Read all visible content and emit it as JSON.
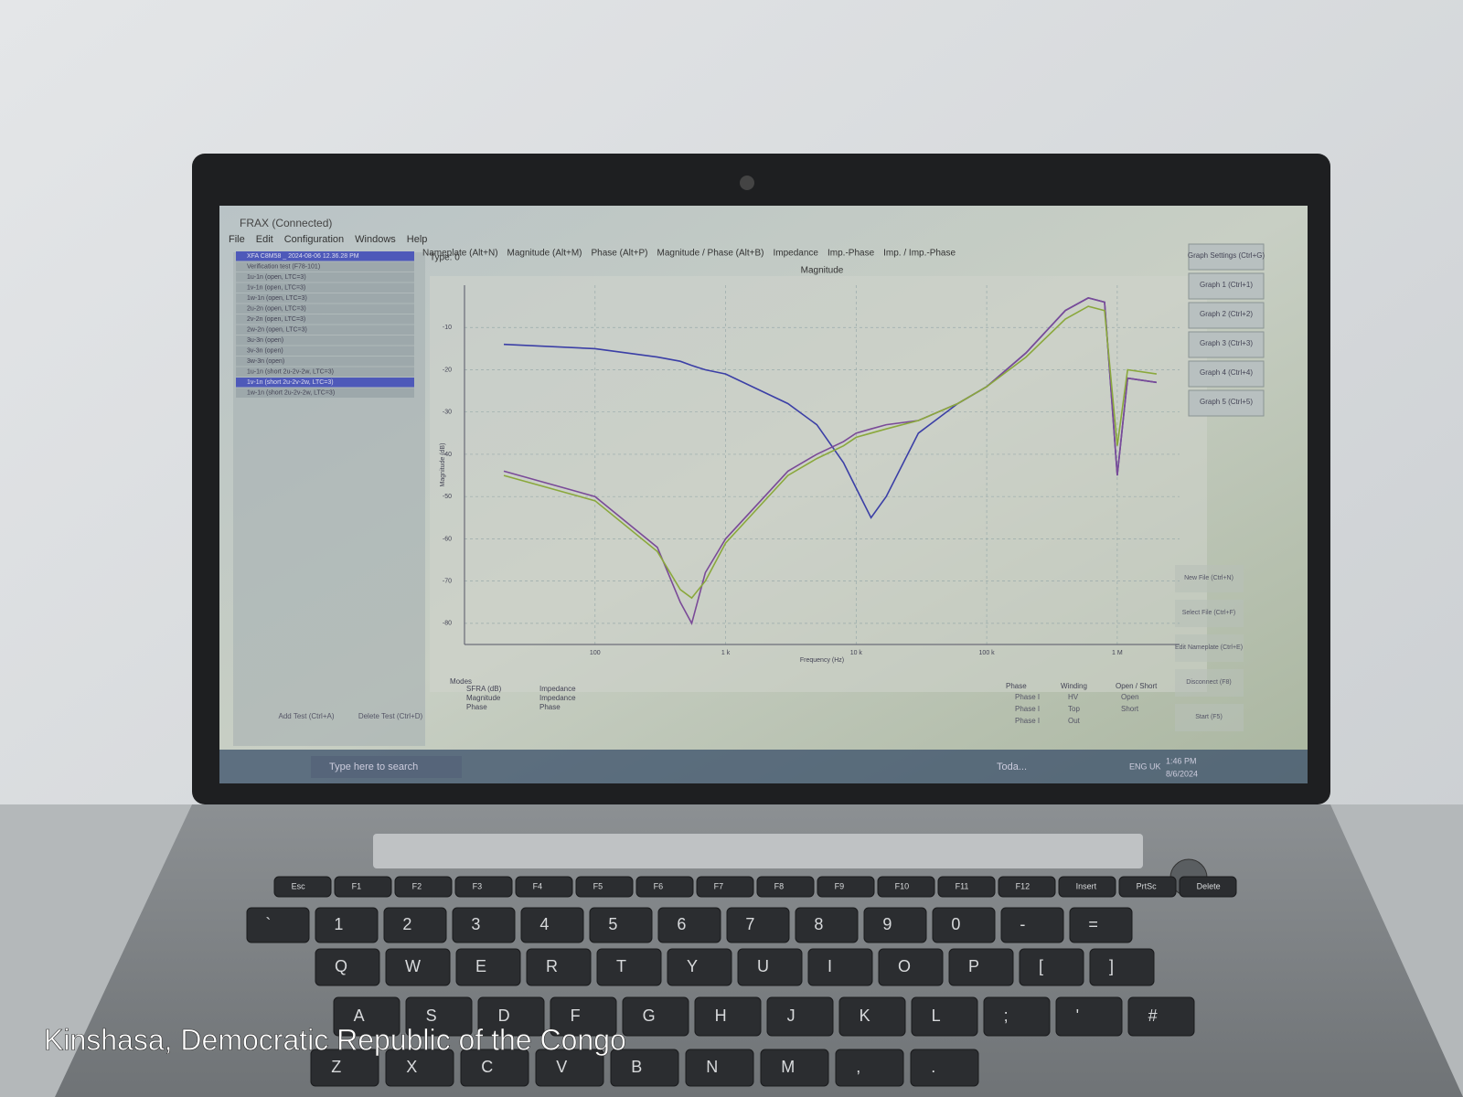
{
  "window": {
    "title": "FRAX (Connected)",
    "menu": [
      "File",
      "Edit",
      "Configuration",
      "Windows",
      "Help"
    ]
  },
  "files": [
    "XFA C8M58 _ 2024-08-06 12.36.28 PM",
    "Verification test (F78-101)",
    "1u-1n (open, LTC=3)",
    "1v-1n (open, LTC=3)",
    "1w-1n (open, LTC=3)",
    "2u-2n (open, LTC=3)",
    "2v-2n (open, LTC=3)",
    "2w-2n (open, LTC=3)",
    "3u-3n (open)",
    "3v-3n (open)",
    "3w-3n (open)",
    "1u-1n (short 2u-2v-2w, LTC=3)",
    "1v-1n (short 2u-2v-2w, LTC=3)",
    "1w-1n (short 2u-2v-2w, LTC=3)"
  ],
  "tabs": [
    "Nameplate (Alt+N)",
    "Magnitude (Alt+M)",
    "Phase (Alt+P)",
    "Magnitude / Phase (Alt+B)",
    "Impedance",
    "Imp.-Phase",
    "Imp. / Imp.-Phase"
  ],
  "graph_buttons": [
    "Graph Settings (Ctrl+G)",
    "Graph 1 (Ctrl+1)",
    "Graph 2 (Ctrl+2)",
    "Graph 3 (Ctrl+3)",
    "Graph 4 (Ctrl+4)",
    "Graph 5 (Ctrl+5)"
  ],
  "side_buttons": [
    "New File (Ctrl+N)",
    "Select File (Ctrl+F)",
    "Edit Nameplate (Ctrl+E)",
    "Disconnect (F8)",
    "Start (F5)"
  ],
  "bottom_buttons": [
    "Add Test (Ctrl+A)",
    "Delete Test (Ctrl+D)"
  ],
  "type_label": "Type: 0",
  "modes": {
    "title": "Modes",
    "items": [
      "SFRA (dB)",
      "Magnitude",
      "Phase",
      "Impedance",
      "Impedance",
      "Phase"
    ]
  },
  "options": {
    "phase": "Phase",
    "winding": "Winding",
    "open_short": "Open / Short",
    "items": [
      "Phase I",
      "Phase I",
      "Phase I",
      "HV",
      "Top",
      "Out",
      "Open",
      "Short"
    ]
  },
  "taskbar": {
    "search": "Type here to search",
    "weather": "Toda...",
    "lang": "ENG UK",
    "time": "1:46 PM",
    "date": "8/6/2024"
  },
  "chart_data": {
    "type": "line",
    "title": "Magnitude",
    "xlabel": "Frequency (Hz)",
    "ylabel": "Magnitude (dB)",
    "xlog": true,
    "grid": true,
    "x": [
      20,
      100,
      300,
      450,
      550,
      700,
      1000,
      3000,
      5000,
      8000,
      10000,
      13000,
      17000,
      30000,
      60000,
      100000,
      200000,
      400000,
      600000,
      800000,
      1000000,
      1200000,
      2000000
    ],
    "series": [
      {
        "color": "#3b3fa6",
        "values": [
          -14,
          -15,
          -17,
          -18,
          -19,
          -20,
          -21,
          -28,
          -33,
          -42,
          -48,
          -55,
          -50,
          -35,
          -28,
          -24,
          -16,
          -6,
          -3,
          -4,
          -45,
          -22,
          -23
        ]
      },
      {
        "color": "#7a4a98",
        "values": [
          -44,
          -50,
          -62,
          -75,
          -80,
          -68,
          -60,
          -44,
          -40,
          -37,
          -35,
          -34,
          -33,
          -32,
          -28,
          -24,
          -16,
          -6,
          -3,
          -4,
          -45,
          -22,
          -23
        ]
      },
      {
        "color": "#8aa83c",
        "values": [
          -45,
          -51,
          -63,
          -72,
          -74,
          -70,
          -61,
          -45,
          -41,
          -38,
          -36,
          -35,
          -34,
          -32,
          -28,
          -24,
          -17,
          -8,
          -5,
          -6,
          -38,
          -20,
          -21
        ]
      }
    ],
    "xlim": [
      10,
      3000000
    ],
    "ylim": [
      -85,
      0
    ],
    "xticks": [
      100,
      {
        "value": 1000,
        "label": "1 k"
      },
      {
        "value": 10000,
        "label": "10 k"
      },
      {
        "value": 100000,
        "label": "100 k"
      },
      {
        "value": 1000000,
        "label": "1 M"
      }
    ],
    "yticks": [
      -10,
      -20,
      -30,
      -40,
      -50,
      -60,
      -70,
      -80
    ]
  },
  "keyboard": [
    [
      "Esc",
      "F1",
      "F2",
      "F3",
      "F4",
      "F5",
      "F6",
      "F7",
      "F8",
      "F9",
      "F10",
      "F11",
      "F12",
      "Insert",
      "PrtSc",
      "Delete"
    ],
    [
      "`",
      "1",
      "2",
      "3",
      "4",
      "5",
      "6",
      "7",
      "8",
      "9",
      "0",
      "-",
      "="
    ],
    [
      "Q",
      "W",
      "E",
      "R",
      "T",
      "Y",
      "U",
      "I",
      "O",
      "P",
      "[",
      "]"
    ],
    [
      "A",
      "S",
      "D",
      "F",
      "G",
      "H",
      "J",
      "K",
      "L",
      ";",
      "'",
      "#"
    ],
    [
      "Z",
      "X",
      "C",
      "V",
      "B",
      "N",
      "M",
      ",",
      "."
    ]
  ],
  "caption": "Kinshasa, Democratic Republic of the Congo"
}
